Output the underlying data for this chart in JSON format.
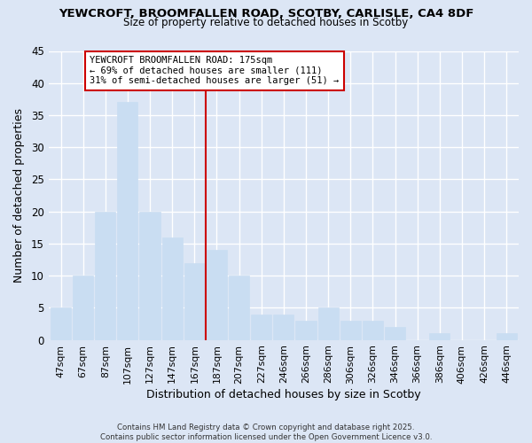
{
  "title1": "YEWCROFT, BROOMFALLEN ROAD, SCOTBY, CARLISLE, CA4 8DF",
  "title2": "Size of property relative to detached houses in Scotby",
  "xlabel": "Distribution of detached houses by size in Scotby",
  "ylabel": "Number of detached properties",
  "categories": [
    "47sqm",
    "67sqm",
    "87sqm",
    "107sqm",
    "127sqm",
    "147sqm",
    "167sqm",
    "187sqm",
    "207sqm",
    "227sqm",
    "246sqm",
    "266sqm",
    "286sqm",
    "306sqm",
    "326sqm",
    "346sqm",
    "366sqm",
    "386sqm",
    "406sqm",
    "426sqm",
    "446sqm"
  ],
  "values": [
    5,
    10,
    20,
    37,
    20,
    16,
    12,
    14,
    10,
    4,
    4,
    3,
    5,
    3,
    3,
    2,
    0,
    1,
    0,
    0,
    1
  ],
  "bar_color": "#c9ddf2",
  "bar_edge_color": "#c9ddf2",
  "vline_x_index": 7,
  "vline_color": "#cc0000",
  "annotation_title": "YEWCROFT BROOMFALLEN ROAD: 175sqm",
  "annotation_line1": "← 69% of detached houses are smaller (111)",
  "annotation_line2": "31% of semi-detached houses are larger (51) →",
  "annotation_box_color": "#ffffff",
  "annotation_box_edge": "#cc0000",
  "ylim": [
    0,
    45
  ],
  "yticks": [
    0,
    5,
    10,
    15,
    20,
    25,
    30,
    35,
    40,
    45
  ],
  "bg_color": "#dce6f5",
  "grid_color": "#ffffff",
  "footer": "Contains HM Land Registry data © Crown copyright and database right 2025.\nContains public sector information licensed under the Open Government Licence v3.0."
}
